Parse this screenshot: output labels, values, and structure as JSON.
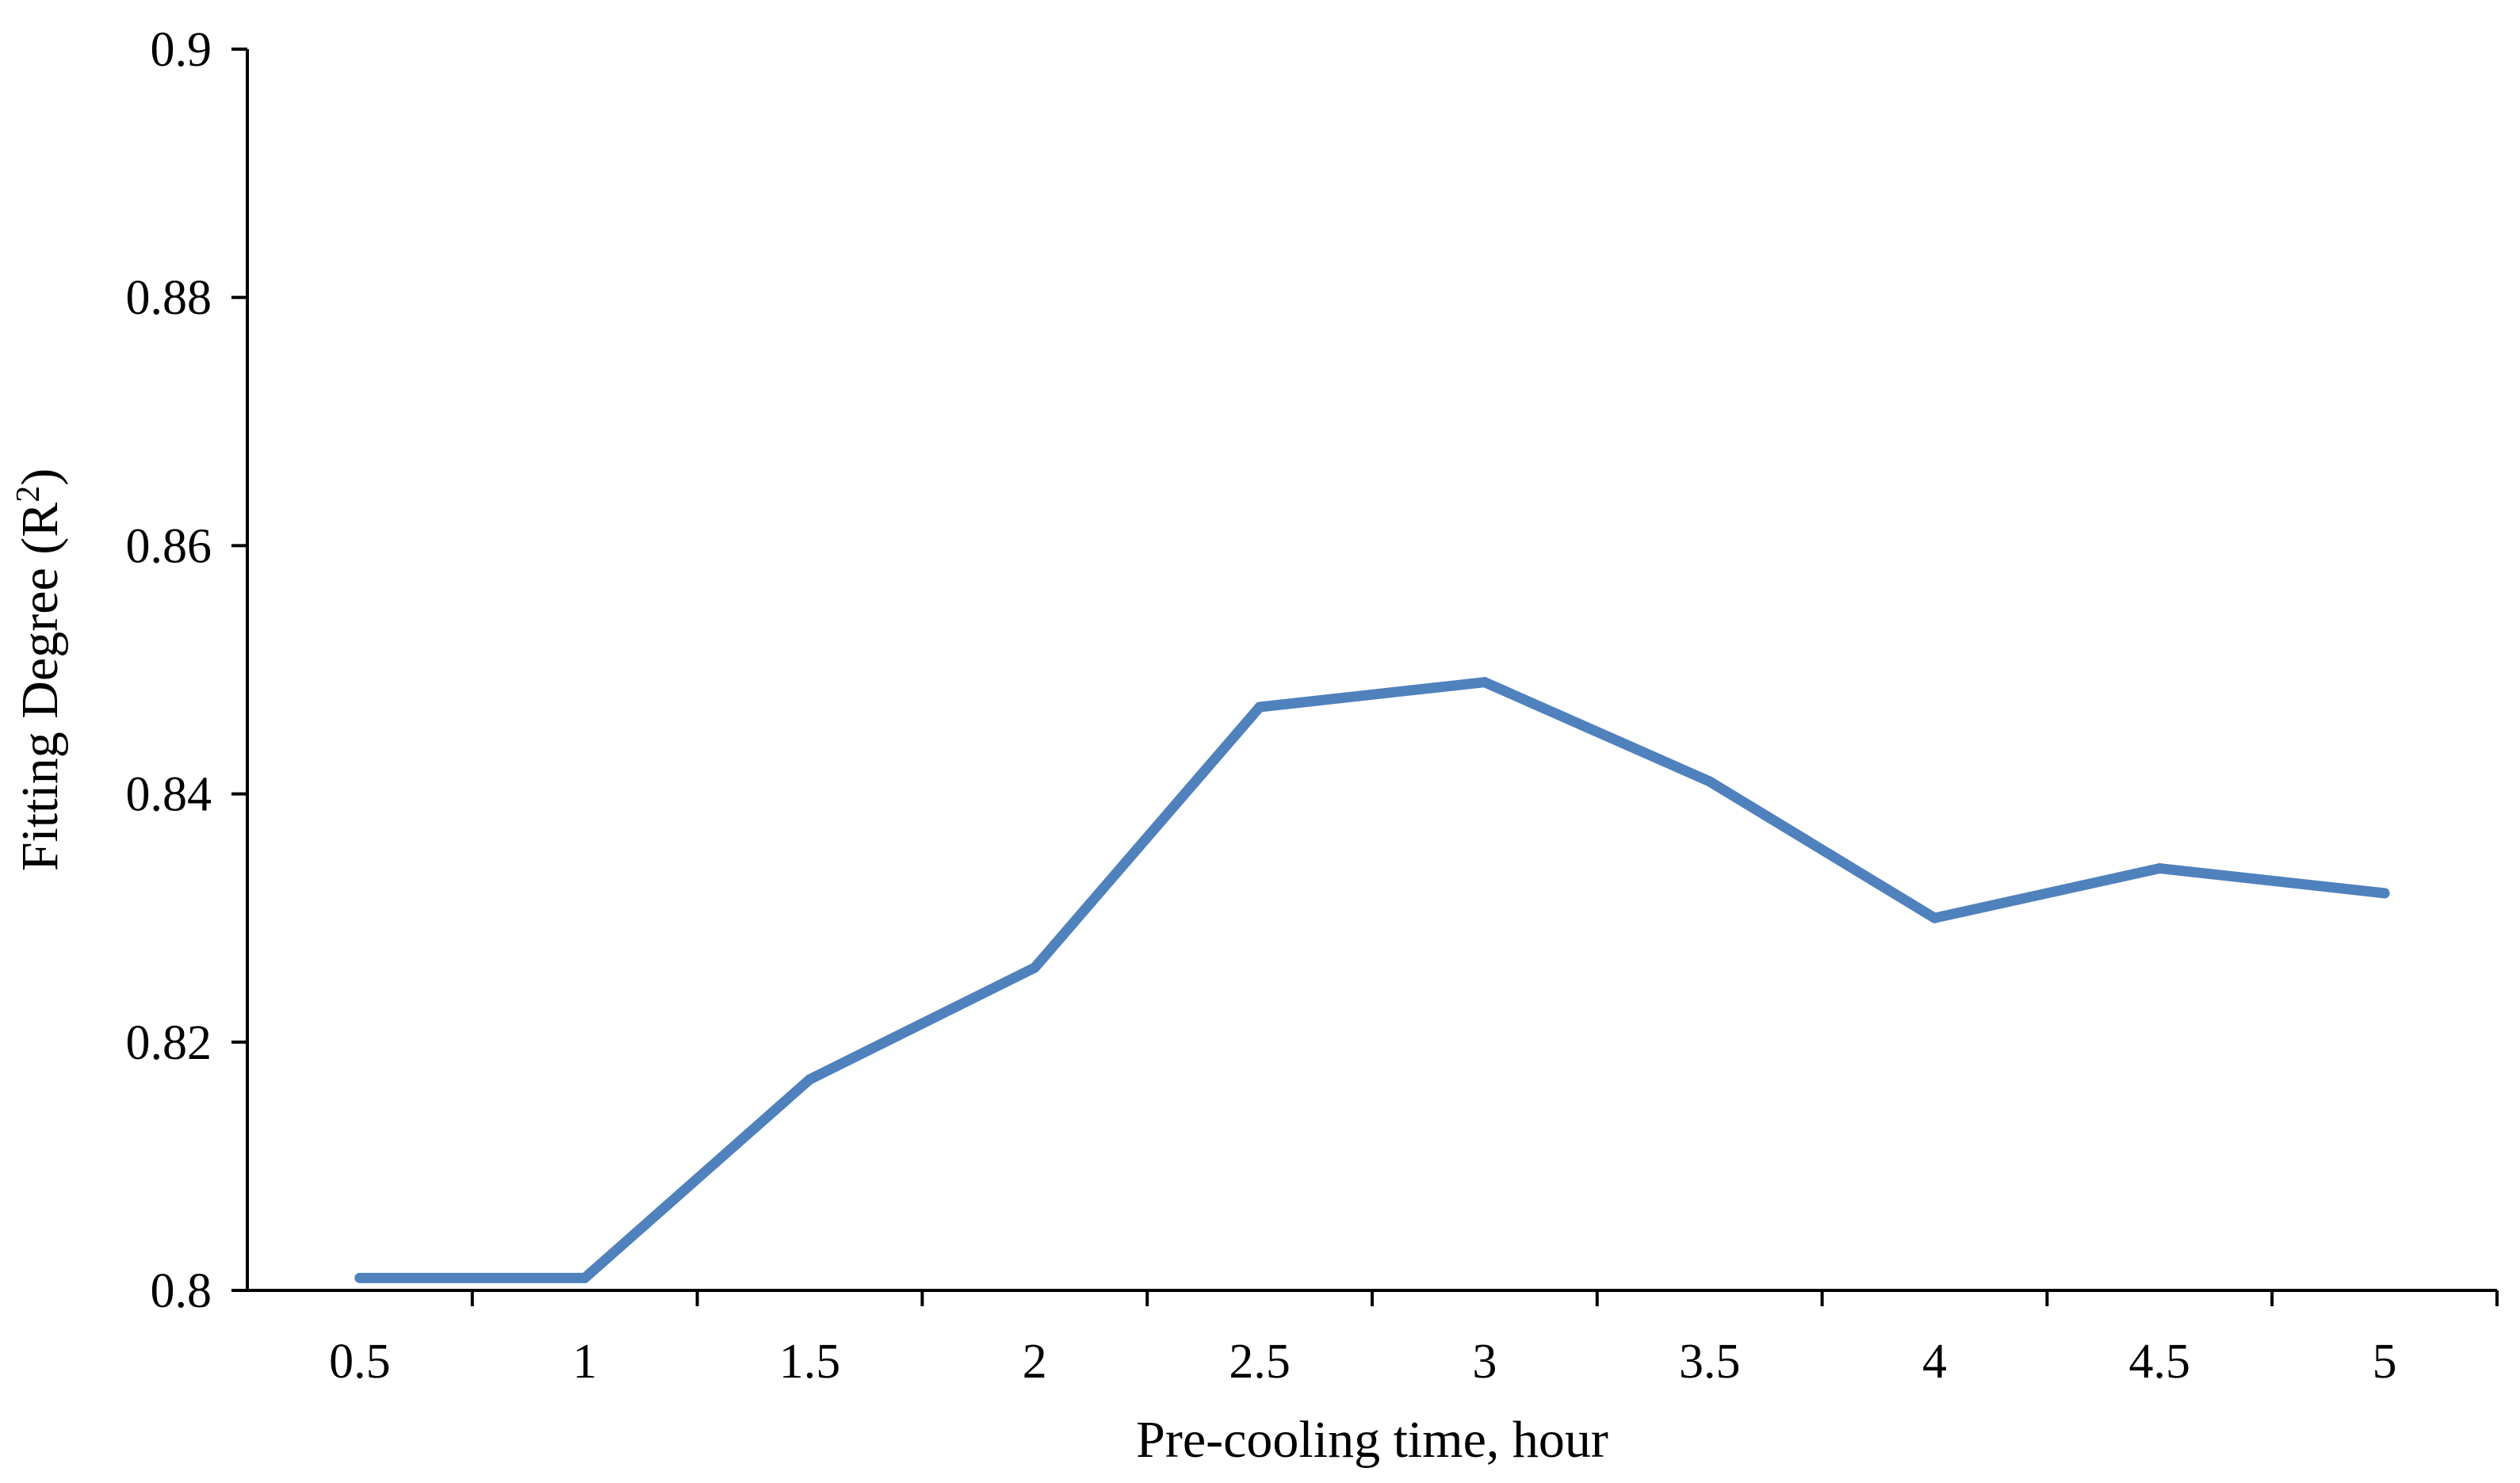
{
  "chart_data": {
    "type": "line",
    "x": [
      0.5,
      1,
      1.5,
      2,
      2.5,
      3,
      3.5,
      4,
      4.5,
      5
    ],
    "x_tick_labels": [
      "0.5",
      "1",
      "1.5",
      "2",
      "2.5",
      "3",
      "3.5",
      "4",
      "4.5",
      "5"
    ],
    "series": [
      {
        "values": [
          0.801,
          0.801,
          0.817,
          0.826,
          0.847,
          0.849,
          0.841,
          0.83,
          0.834,
          0.832
        ],
        "color": "#4f81bd"
      }
    ],
    "ylim": [
      0.8,
      0.9
    ],
    "y_ticks": [
      0.8,
      0.82,
      0.84,
      0.86,
      0.88,
      0.9
    ],
    "y_tick_labels": [
      "0.8",
      "0.82",
      "0.84",
      "0.86",
      "0.88",
      "0.9"
    ],
    "xlabel": "Pre-cooling time, hour",
    "ylabel": {
      "text": "Fitting Degree (R",
      "superscript": "2",
      "suffix": ")"
    },
    "grid": false,
    "legend": "none",
    "title": ""
  }
}
